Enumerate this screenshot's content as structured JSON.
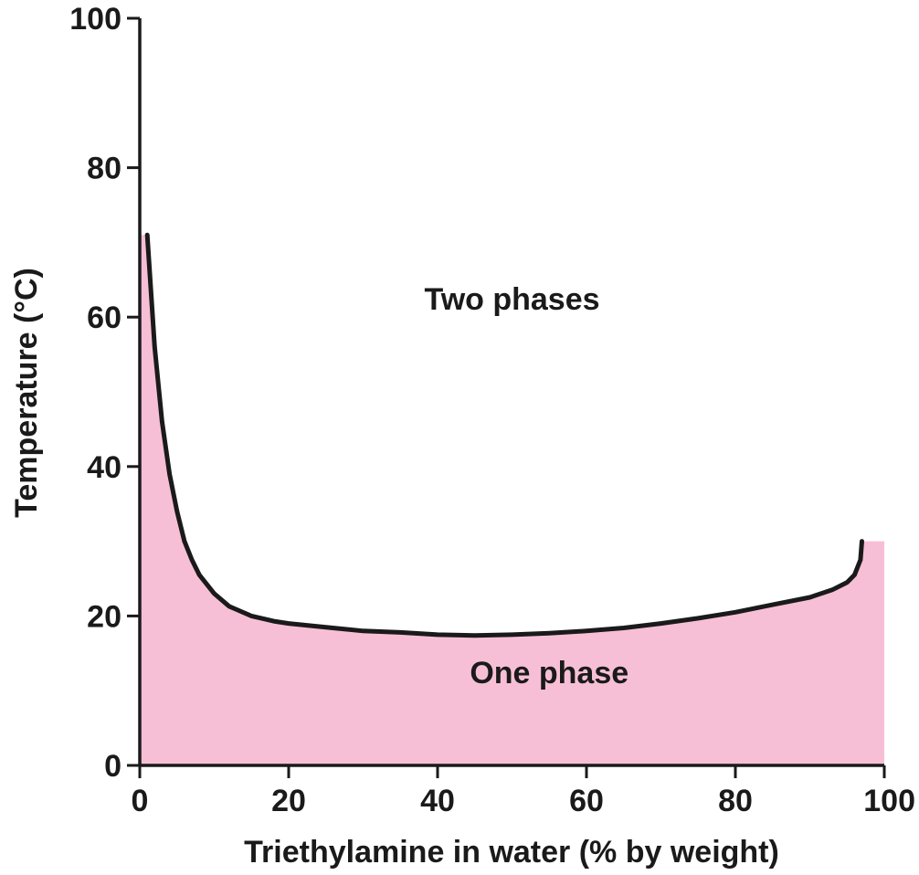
{
  "chart_data": {
    "type": "area",
    "title": "",
    "xlabel": "Triethylamine in water (% by weight)",
    "ylabel": "Temperature (°C)",
    "xlim": [
      0,
      100
    ],
    "ylim": [
      0,
      100
    ],
    "xticks": [
      "0",
      "20",
      "40",
      "60",
      "80",
      "100"
    ],
    "yticks": [
      "0",
      "20",
      "40",
      "60",
      "80",
      "100"
    ],
    "grid": false,
    "legend": "none",
    "colors": {
      "fill": "#f7bfd6",
      "line": "#1a1a1a",
      "axis": "#1a1a1a"
    },
    "series": [
      {
        "x": [
          1,
          2,
          3,
          4,
          5,
          6,
          7,
          8,
          10,
          12,
          15,
          18,
          20,
          25,
          30,
          35,
          40,
          45,
          50,
          55,
          60,
          65,
          70,
          75,
          80,
          85,
          90,
          93,
          95,
          96,
          96.8,
          97
        ],
        "values": [
          71,
          56,
          46,
          39,
          34,
          30,
          27.5,
          25.5,
          23,
          21.3,
          20,
          19.3,
          19,
          18.5,
          18,
          17.8,
          17.5,
          17.4,
          17.5,
          17.7,
          18,
          18.4,
          19,
          19.7,
          20.5,
          21.5,
          22.5,
          23.5,
          24.5,
          25.5,
          27.5,
          30
        ]
      }
    ],
    "fill_right_edge": {
      "x": [
        97,
        100
      ],
      "values": [
        30,
        30
      ]
    },
    "annotations": [
      {
        "text": "Two phases",
        "x": 50,
        "y": 61
      },
      {
        "text": "One phase",
        "x": 55,
        "y": 11
      }
    ]
  }
}
